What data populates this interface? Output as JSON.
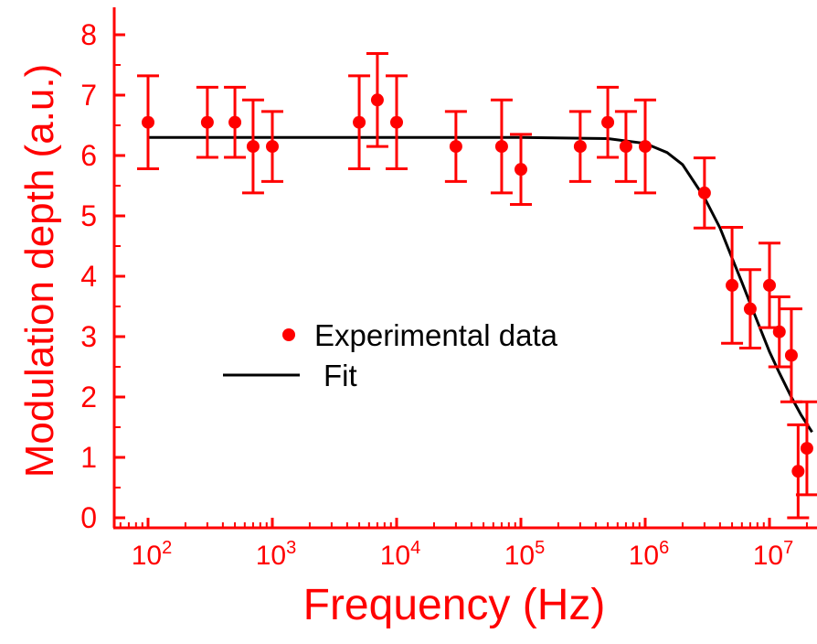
{
  "chart_data": {
    "type": "scatter",
    "xlabel": "Frequency (Hz)",
    "ylabel": "Modulation depth (a.u.)",
    "x_scale": "log",
    "xlim": [
      50,
      22000000
    ],
    "ylim": [
      -0.1,
      8.5
    ],
    "x_ticks": [
      {
        "base": "10",
        "exp": "2"
      },
      {
        "base": "10",
        "exp": "3"
      },
      {
        "base": "10",
        "exp": "4"
      },
      {
        "base": "10",
        "exp": "5"
      },
      {
        "base": "10",
        "exp": "6"
      },
      {
        "base": "10",
        "exp": "7"
      }
    ],
    "x_tick_values": [
      100,
      1000,
      10000,
      100000,
      1000000,
      10000000
    ],
    "y_ticks": [
      "0",
      "1",
      "2",
      "3",
      "4",
      "5",
      "6",
      "7",
      "8"
    ],
    "y_tick_values": [
      0,
      1,
      2,
      3,
      4,
      5,
      6,
      7,
      8
    ],
    "grid": false,
    "legend_position": "center-left",
    "series": [
      {
        "name": "Experimental data",
        "type": "scatter",
        "color": "#ff0000",
        "x": [
          100,
          300,
          500,
          700,
          1000,
          5000,
          7000,
          10000,
          30000,
          70000,
          100000,
          300000,
          500000,
          700000,
          1000000,
          3000000,
          5000000,
          7000000,
          10000000,
          12000000,
          15000000,
          17000000,
          20000000
        ],
        "y": [
          6.55,
          6.55,
          6.55,
          6.15,
          6.15,
          6.55,
          6.92,
          6.55,
          6.15,
          6.15,
          5.77,
          6.15,
          6.55,
          6.15,
          6.15,
          5.38,
          3.85,
          3.46,
          3.85,
          3.08,
          2.69,
          0.77,
          1.15
        ],
        "error": [
          0.77,
          0.58,
          0.58,
          0.77,
          0.58,
          0.77,
          0.77,
          0.77,
          0.58,
          0.77,
          0.58,
          0.58,
          0.58,
          0.58,
          0.77,
          0.58,
          0.96,
          0.65,
          0.7,
          0.58,
          0.77,
          0.77,
          0.77
        ]
      },
      {
        "name": "Fit",
        "type": "line",
        "color": "#000000",
        "x": [
          100,
          1000,
          10000,
          100000,
          500000,
          1000000,
          1500000,
          2000000,
          3000000,
          4000000,
          5000000,
          6000000,
          7000000,
          8000000,
          10000000,
          12000000,
          15000000,
          18000000,
          22000000
        ],
        "y": [
          6.3,
          6.3,
          6.3,
          6.3,
          6.28,
          6.2,
          6.05,
          5.85,
          5.3,
          4.8,
          4.3,
          3.9,
          3.55,
          3.25,
          2.75,
          2.4,
          2.0,
          1.7,
          1.42
        ]
      }
    ]
  }
}
